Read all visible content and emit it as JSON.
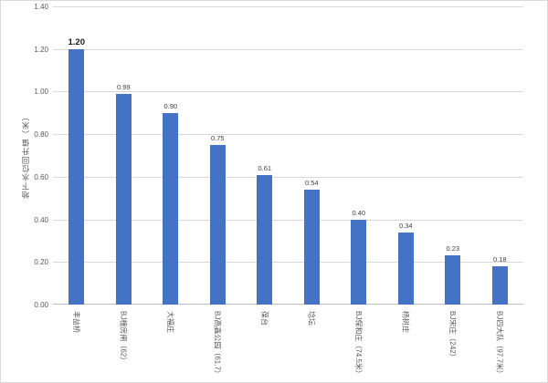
{
  "chart_data": {
    "type": "bar",
    "title": "",
    "xlabel": "",
    "ylabel": "地下水位回升值（米）",
    "ylim": [
      0,
      1.4
    ],
    "ytick_step": 0.2,
    "yticks": [
      "0.00",
      "0.20",
      "0.40",
      "0.60",
      "0.80",
      "1.00",
      "1.20",
      "1.40"
    ],
    "grid": true,
    "legend": "none",
    "categories": [
      "丰益桥",
      "BJ槐房闸（62）",
      "大福庄",
      "BJ高鑫公园（61.7）",
      "葆台",
      "埝坛",
      "BJ保和庄（74.5米）",
      "杨树庄",
      "BJ宋庄（242）",
      "BJ四大队（97.7米）"
    ],
    "values": [
      1.2,
      0.99,
      0.9,
      0.75,
      0.61,
      0.54,
      0.4,
      0.34,
      0.23,
      0.18
    ],
    "value_labels": [
      "1.20",
      "0.99",
      "0.90",
      "0.75",
      "0.61",
      "0.54",
      "0.40",
      "0.34",
      "0.23",
      "0.18"
    ],
    "bar_color": "#4472C4",
    "gridline_color": "#D9D9D9",
    "axis_line_color": "#BFBFBF",
    "tick_label_color": "#595959",
    "category_label_color": "#595959",
    "value_label_color": "#404040"
  }
}
